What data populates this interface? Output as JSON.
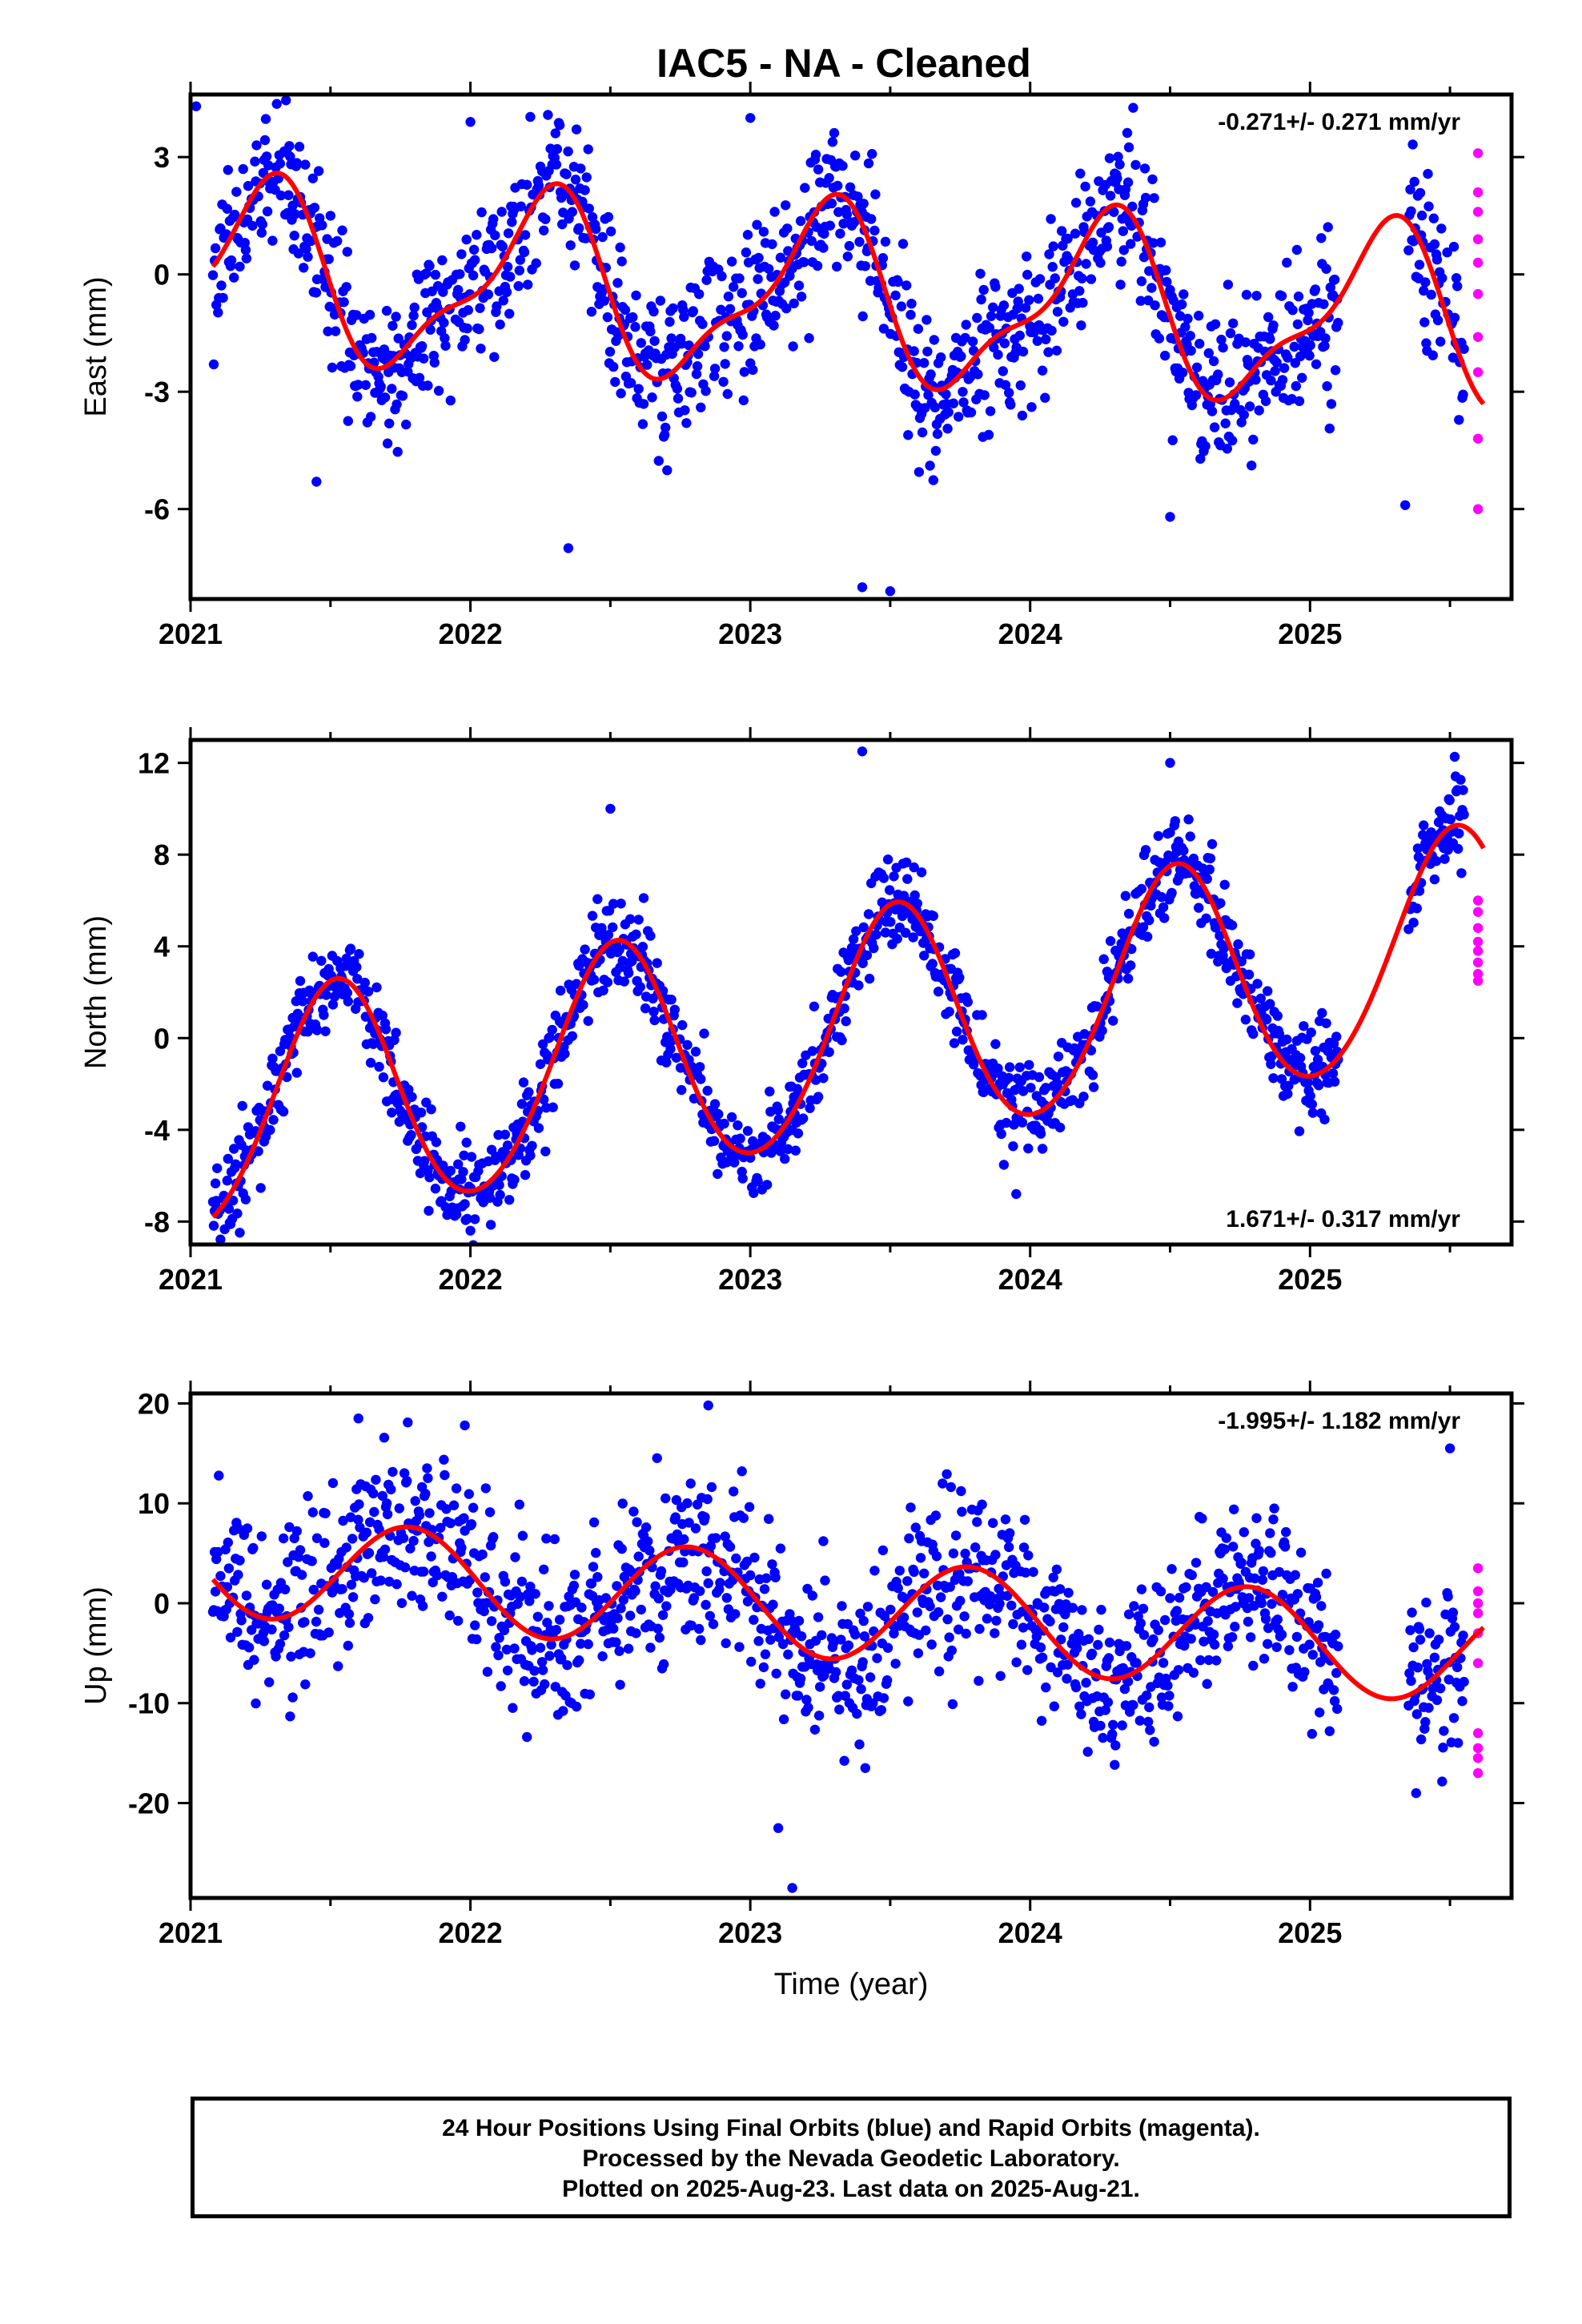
{
  "title": "IAC5  - NA - Cleaned",
  "chart_data": [
    {
      "type": "scatter",
      "panel": "east",
      "ylabel": "East (mm)",
      "xlabel": "",
      "rate_label": "-0.271+/- 0.271 mm/yr",
      "rate_position": "top-right",
      "xlim": [
        2021.0,
        2025.72
      ],
      "ylim": [
        -8.3,
        4.6
      ],
      "yticks": [
        3,
        0,
        -3,
        -6
      ],
      "xticks": [
        2021,
        2022,
        2023,
        2024,
        2025
      ],
      "fit": {
        "offset": -0.6,
        "trend": -0.271,
        "t0": 2023.3,
        "a1": -0.1,
        "b1": 2.1,
        "a2": -0.25,
        "b2": -0.7
      },
      "final_orbits": {
        "t_start": 2021.08,
        "t_end": 2025.55,
        "step": 0.003,
        "gaps": [
          [
            2025.1,
            2025.35
          ]
        ],
        "scatter_sd": 1.0,
        "spikes": [
          [
            2021.02,
            4.3
          ],
          [
            2021.45,
            -5.3
          ],
          [
            2022.35,
            -7.0
          ],
          [
            2023.4,
            -8.0
          ],
          [
            2023.5,
            -8.1
          ],
          [
            2024.5,
            -6.2
          ],
          [
            2025.34,
            -5.9
          ],
          [
            2022.0,
            3.9
          ],
          [
            2023.0,
            4.0
          ]
        ]
      },
      "rapid_orbits": {
        "x": [
          2025.6,
          2025.6,
          2025.6,
          2025.6,
          2025.6,
          2025.6,
          2025.6,
          2025.6,
          2025.6,
          2025.6
        ],
        "y": [
          3.1,
          2.1,
          1.6,
          0.9,
          0.3,
          -0.5,
          -1.6,
          -2.5,
          -4.2,
          -6.0
        ]
      }
    },
    {
      "type": "scatter",
      "panel": "north",
      "ylabel": "North (mm)",
      "xlabel": "",
      "rate_label": "1.671+/- 0.317 mm/yr",
      "rate_position": "bottom-right",
      "xlim": [
        2021.0,
        2025.72
      ],
      "ylim": [
        -9.0,
        13.0
      ],
      "yticks": [
        12,
        8,
        4,
        0,
        -4,
        -8
      ],
      "xticks": [
        2021,
        2022,
        2023,
        2024,
        2025
      ],
      "fit": {
        "offset": 0.2,
        "trend": 1.671,
        "t0": 2023.3,
        "a1": -5.0,
        "b1": -0.5,
        "a2": 0.3,
        "b2": 0.2
      },
      "final_orbits": {
        "t_start": 2021.08,
        "t_end": 2025.55,
        "step": 0.003,
        "gaps": [
          [
            2025.1,
            2025.35
          ]
        ],
        "scatter_sd": 1.0,
        "spikes": [
          [
            2023.4,
            12.5
          ],
          [
            2024.5,
            12.0
          ],
          [
            2022.0,
            -8.4
          ],
          [
            2023.95,
            -6.8
          ],
          [
            2022.5,
            10.0
          ]
        ]
      },
      "rapid_orbits": {
        "x": [
          2025.6,
          2025.6,
          2025.6,
          2025.6,
          2025.6,
          2025.6,
          2025.6,
          2025.6
        ],
        "y": [
          6.0,
          5.5,
          4.8,
          4.2,
          3.8,
          3.3,
          2.8,
          2.5
        ]
      }
    },
    {
      "type": "scatter",
      "panel": "up",
      "ylabel": "Up (mm)",
      "xlabel": "Time (year)",
      "rate_label": "-1.995+/- 1.182 mm/yr",
      "rate_position": "top-right",
      "xlim": [
        2021.0,
        2025.72
      ],
      "ylim": [
        -29.5,
        21.0
      ],
      "yticks": [
        20,
        10,
        0,
        -10,
        -20
      ],
      "xticks": [
        2021,
        2022,
        2023,
        2024,
        2025
      ],
      "fit": {
        "offset": -0.5,
        "trend": -1.995,
        "t0": 2023.3,
        "a1": 1.0,
        "b1": -5.0,
        "a2": 0,
        "b2": 0
      },
      "final_orbits": {
        "t_start": 2021.08,
        "t_end": 2025.55,
        "step": 0.003,
        "gaps": [
          [
            2025.1,
            2025.35
          ]
        ],
        "scatter_sd": 4.0,
        "spikes": [
          [
            2023.15,
            -28.5
          ],
          [
            2023.1,
            -22.5
          ],
          [
            2022.85,
            19.8
          ],
          [
            2025.5,
            15.5
          ],
          [
            2021.6,
            18.5
          ],
          [
            2021.98,
            17.8
          ]
        ]
      },
      "rapid_orbits": {
        "x": [
          2025.6,
          2025.6,
          2025.6,
          2025.6,
          2025.6,
          2025.6,
          2025.6,
          2025.6,
          2025.6,
          2025.6
        ],
        "y": [
          3.5,
          1.2,
          0.0,
          -1.0,
          -3.0,
          -6.0,
          -13.0,
          -14.5,
          -15.5,
          -17.0
        ]
      }
    }
  ],
  "footer": {
    "line1": "24 Hour Positions Using Final Orbits (blue) and Rapid Orbits (magenta).",
    "line2": "Processed by the Nevada Geodetic Laboratory.",
    "line3": "Plotted on 2025-Aug-23. Last data on 2025-Aug-21."
  },
  "colors": {
    "final": "#0000ff",
    "rapid": "#ff00ff",
    "fit": "#ff0000",
    "frame": "#000000"
  }
}
